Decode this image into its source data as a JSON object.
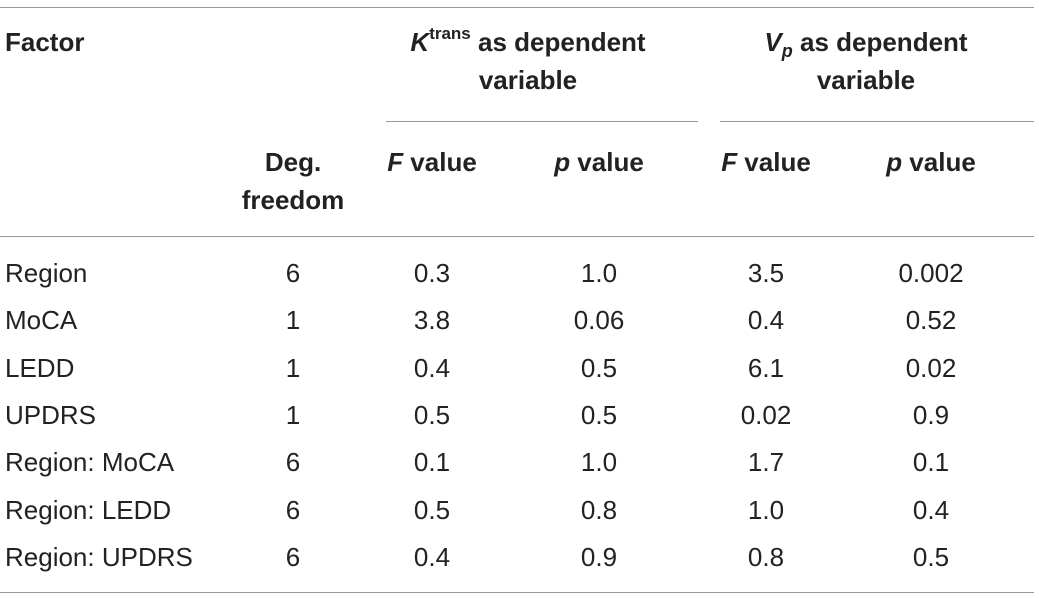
{
  "header": {
    "factor": "Factor",
    "ktrans_group": {
      "symbol": "K",
      "sup": "trans",
      "text_line1": " as dependent",
      "text_line2": "variable"
    },
    "vp_group": {
      "symbol": "V",
      "sub": "p",
      "text_line1": " as dependent",
      "text_line2": "variable"
    },
    "deg_freedom_line1": "Deg.",
    "deg_freedom_line2": "freedom",
    "f_symbol": "F",
    "p_symbol": "p",
    "value_word": " value"
  },
  "rows": [
    {
      "factor": "Region",
      "df": "6",
      "k_f": "0.3",
      "k_p": "1.0",
      "v_f": "3.5",
      "v_p": "0.002"
    },
    {
      "factor": "MoCA",
      "df": "1",
      "k_f": "3.8",
      "k_p": "0.06",
      "v_f": "0.4",
      "v_p": "0.52"
    },
    {
      "factor": "LEDD",
      "df": "1",
      "k_f": "0.4",
      "k_p": "0.5",
      "v_f": "6.1",
      "v_p": "0.02"
    },
    {
      "factor": "UPDRS",
      "df": "1",
      "k_f": "0.5",
      "k_p": "0.5",
      "v_f": "0.02",
      "v_p": "0.9"
    },
    {
      "factor": "Region: MoCA",
      "df": "6",
      "k_f": "0.1",
      "k_p": "1.0",
      "v_f": "1.7",
      "v_p": "0.1"
    },
    {
      "factor": "Region: LEDD",
      "df": "6",
      "k_f": "0.5",
      "k_p": "0.8",
      "v_f": "1.0",
      "v_p": "0.4"
    },
    {
      "factor": "Region: UPDRS",
      "df": "6",
      "k_f": "0.4",
      "k_p": "0.9",
      "v_f": "0.8",
      "v_p": "0.5"
    }
  ]
}
